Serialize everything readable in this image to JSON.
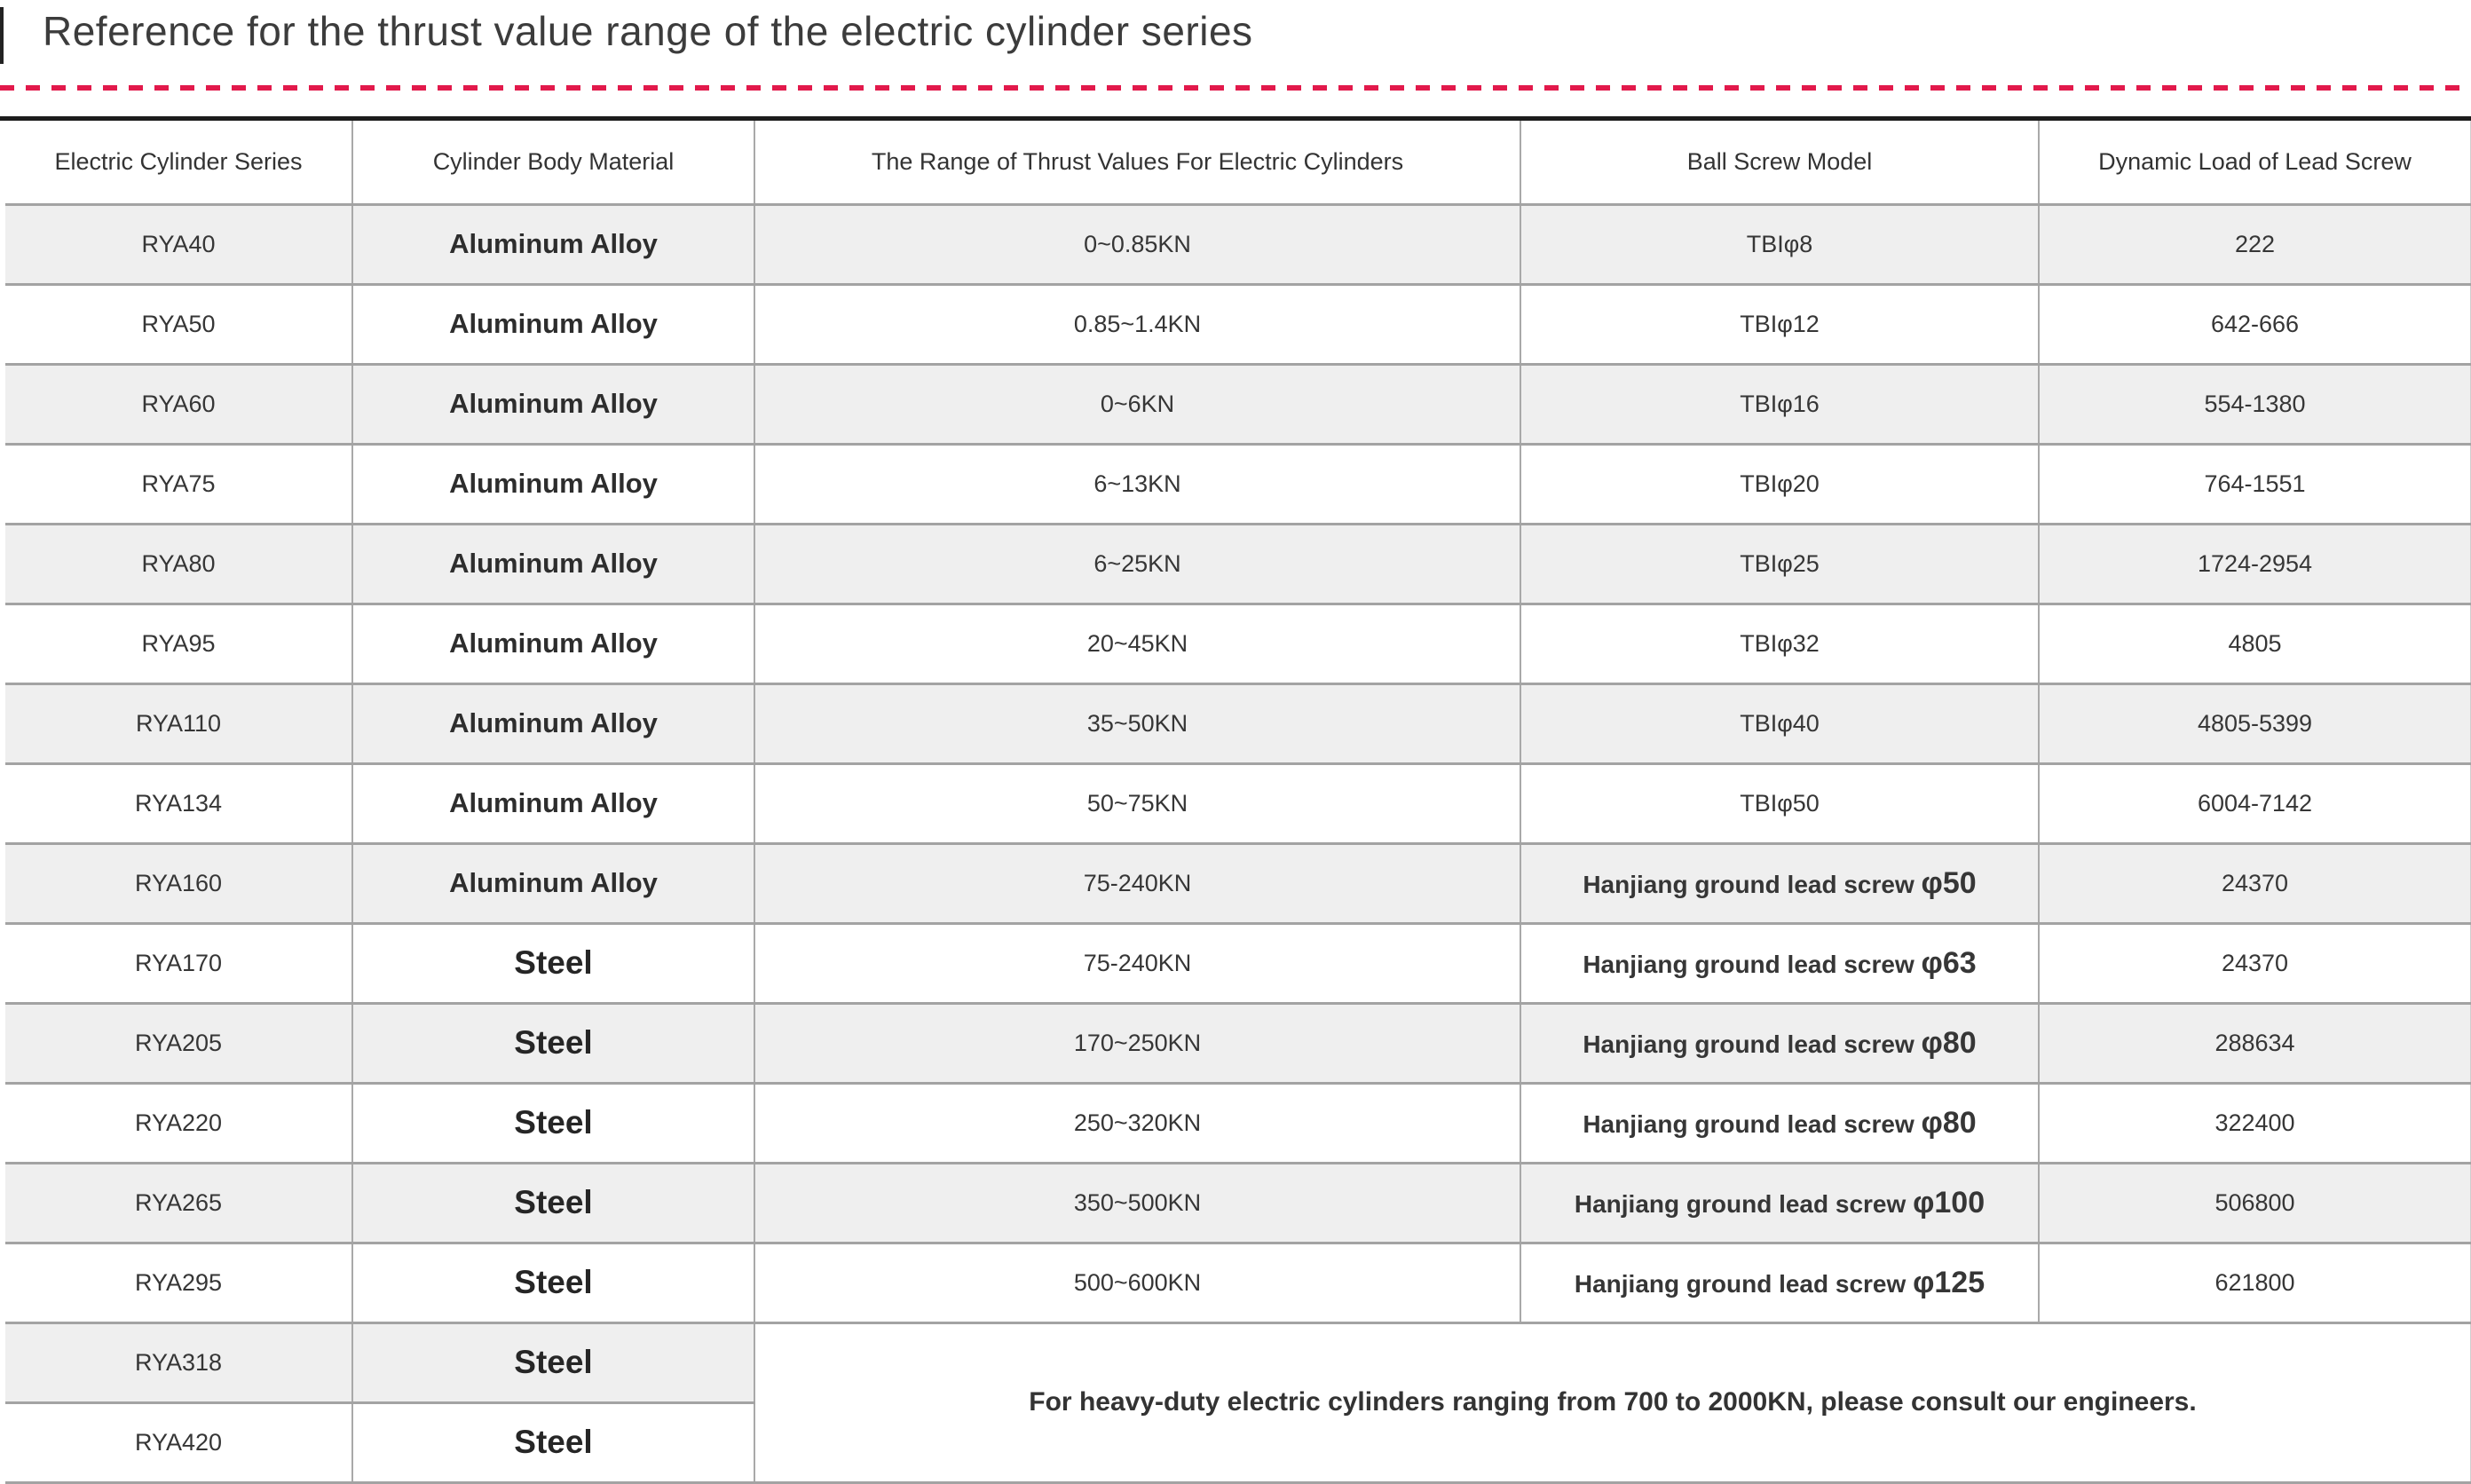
{
  "page": {
    "title": "Reference for the thrust value range of the electric cylinder series"
  },
  "colors": {
    "accent_dash_red": "#e2194b",
    "table_top_border": "#1c1c1c",
    "row_stripe": "#efefef",
    "grid_border": "#a9a9a9",
    "text": "#333333"
  },
  "table": {
    "headers": [
      "Electric Cylinder Series",
      "Cylinder Body Material",
      "The Range of Thrust Values For Electric Cylinders",
      "Ball Screw Model",
      "Dynamic Load of Lead Screw"
    ],
    "rows": [
      {
        "series": "RYA40",
        "material": "Aluminum Alloy",
        "thrust": "0~0.85KN",
        "ball_screw": "TBIφ8",
        "load": "222"
      },
      {
        "series": "RYA50",
        "material": "Aluminum Alloy",
        "thrust": "0.85~1.4KN",
        "ball_screw": "TBIφ12",
        "load": "642-666"
      },
      {
        "series": "RYA60",
        "material": "Aluminum Alloy",
        "thrust": "0~6KN",
        "ball_screw": "TBIφ16",
        "load": "554-1380"
      },
      {
        "series": "RYA75",
        "material": "Aluminum Alloy",
        "thrust": "6~13KN",
        "ball_screw": "TBIφ20",
        "load": "764-1551"
      },
      {
        "series": "RYA80",
        "material": "Aluminum Alloy",
        "thrust": "6~25KN",
        "ball_screw": "TBIφ25",
        "load": "1724-2954"
      },
      {
        "series": "RYA95",
        "material": "Aluminum Alloy",
        "thrust": "20~45KN",
        "ball_screw": "TBIφ32",
        "load": "4805"
      },
      {
        "series": "RYA110",
        "material": "Aluminum Alloy",
        "thrust": "35~50KN",
        "ball_screw": "TBIφ40",
        "load": "4805-5399"
      },
      {
        "series": "RYA134",
        "material": "Aluminum Alloy",
        "thrust": "50~75KN",
        "ball_screw": "TBIφ50",
        "load": "6004-7142"
      },
      {
        "series": "RYA160",
        "material": "Aluminum Alloy",
        "thrust": "75-240KN",
        "ball_screw": "Hanjiang ground lead screw φ50",
        "load": "24370"
      },
      {
        "series": "RYA170",
        "material": "Steel",
        "thrust": "75-240KN",
        "ball_screw": "Hanjiang ground lead screw φ63",
        "load": "24370"
      },
      {
        "series": "RYA205",
        "material": "Steel",
        "thrust": "170~250KN",
        "ball_screw": "Hanjiang ground lead screw φ80",
        "load": "288634"
      },
      {
        "series": "RYA220",
        "material": "Steel",
        "thrust": "250~320KN",
        "ball_screw": "Hanjiang ground lead screw φ80",
        "load": "322400"
      },
      {
        "series": "RYA265",
        "material": "Steel",
        "thrust": "350~500KN",
        "ball_screw": "Hanjiang ground lead screw φ100",
        "load": "506800"
      },
      {
        "series": "RYA295",
        "material": "Steel",
        "thrust": "500~600KN",
        "ball_screw": "Hanjiang ground lead screw φ125",
        "load": "621800"
      },
      {
        "series": "RYA318",
        "material": "Steel"
      },
      {
        "series": "RYA420",
        "material": "Steel"
      }
    ],
    "merged_note": "For heavy-duty electric cylinders ranging from 700 to 2000KN, please consult our engineers."
  }
}
